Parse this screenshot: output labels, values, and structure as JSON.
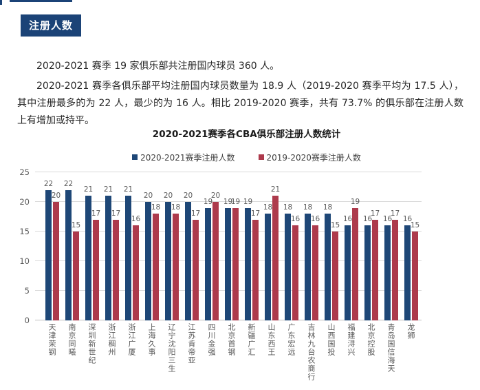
{
  "page": {
    "section_badge": "注册人数",
    "paragraph_1": "2020-2021 赛季 19 家俱乐部共注册国内球员 360 人。",
    "paragraph_2": "2020-2021 赛季各俱乐部平均注册国内球员数量为 18.9 人（2019-2020 赛季平均为 17.5 人），其中注册最多的为 22 人，最少的为 16 人。相比 2019-2020 赛季，共有 73.7% 的俱乐部在注册人数上有增加或持平。"
  },
  "colors": {
    "accent_navy": "#1b4377",
    "series_blue": "#1e4777",
    "series_red": "#ad3a4c",
    "gridline": "#d9d9d9",
    "label_gray": "#595959"
  },
  "chart_data": {
    "type": "bar",
    "title": "2020-2021赛季各CBA俱乐部注册人数统计",
    "categories": [
      "天津荣钢",
      "南京同曦",
      "深圳新世纪",
      "浙江稠州",
      "浙江广厦",
      "上海久事",
      "辽宁沈阳三生",
      "江苏肯帝亚",
      "四川金强",
      "北京首钢",
      "新疆广汇",
      "山东西王",
      "广东宏远",
      "吉林九台农商行",
      "山西国投",
      "福建浔兴",
      "北京控股",
      "青岛国信海天",
      "龙狮"
    ],
    "series": [
      {
        "name": "2020-2021赛季注册人数",
        "color": "#1e4777",
        "values": [
          22,
          22,
          21,
          21,
          21,
          20,
          20,
          20,
          19,
          19,
          19,
          18,
          18,
          18,
          18,
          16,
          16,
          16,
          16
        ]
      },
      {
        "name": "2019-2020赛季注册人数",
        "color": "#ad3a4c",
        "values": [
          20,
          15,
          17,
          17,
          16,
          18,
          18,
          17,
          20,
          19,
          17,
          21,
          16,
          16,
          15,
          19,
          17,
          17,
          15
        ]
      }
    ],
    "ylim": [
      0,
      25
    ],
    "yticks": [
      0,
      5,
      10,
      15,
      20,
      25
    ],
    "grid": true,
    "legend_position": "top",
    "xlabel": "",
    "ylabel": ""
  }
}
